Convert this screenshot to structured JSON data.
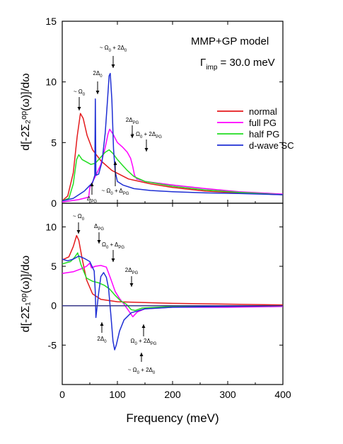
{
  "chart_data": [
    {
      "type": "line",
      "panel": "top",
      "ylabel": "d[-2Σ₂ᵒᵖ(ω)]/dω",
      "xlim": [
        0,
        400
      ],
      "ylim": [
        0,
        15
      ],
      "xticks": [
        0,
        100,
        200,
        300,
        400
      ],
      "yticks": [
        0,
        5,
        10,
        15
      ],
      "grid": false,
      "legend_placement": "center-right",
      "model_label": "MMP+GP model",
      "gamma_label": "Γ",
      "gamma_sub": "imp",
      "gamma_value": " = 30.0 meV",
      "series": [
        {
          "name": "normal",
          "color": "#e41a1c",
          "points": [
            [
              0,
              0.2
            ],
            [
              10,
              0.6
            ],
            [
              20,
              2.5
            ],
            [
              27,
              5.5
            ],
            [
              33,
              7.4
            ],
            [
              38,
              7.0
            ],
            [
              45,
              5.6
            ],
            [
              55,
              4.4
            ],
            [
              70,
              3.5
            ],
            [
              90,
              2.7
            ],
            [
              120,
              2.0
            ],
            [
              160,
              1.6
            ],
            [
              200,
              1.3
            ],
            [
              260,
              1.0
            ],
            [
              320,
              0.85
            ],
            [
              400,
              0.7
            ]
          ]
        },
        {
          "name": "full PG",
          "color": "#ff00ff",
          "points": [
            [
              0,
              0.1
            ],
            [
              30,
              0.3
            ],
            [
              48,
              0.5
            ],
            [
              50,
              1.3
            ],
            [
              62,
              2.4
            ],
            [
              70,
              3.2
            ],
            [
              78,
              4.6
            ],
            [
              83,
              5.7
            ],
            [
              86,
              6.1
            ],
            [
              92,
              5.7
            ],
            [
              100,
              5.0
            ],
            [
              110,
              4.6
            ],
            [
              118,
              4.2
            ],
            [
              124,
              3.7
            ],
            [
              128,
              3.0
            ],
            [
              131,
              2.3
            ],
            [
              135,
              2.0
            ],
            [
              150,
              1.8
            ],
            [
              200,
              1.5
            ],
            [
              260,
              1.2
            ],
            [
              320,
              0.95
            ],
            [
              400,
              0.75
            ]
          ]
        },
        {
          "name": "half PG",
          "color": "#22dd22",
          "points": [
            [
              0,
              0.2
            ],
            [
              12,
              0.4
            ],
            [
              20,
              1.6
            ],
            [
              26,
              3.6
            ],
            [
              30,
              4.0
            ],
            [
              36,
              3.6
            ],
            [
              44,
              3.4
            ],
            [
              52,
              3.2
            ],
            [
              60,
              3.3
            ],
            [
              70,
              3.8
            ],
            [
              78,
              4.2
            ],
            [
              85,
              4.4
            ],
            [
              92,
              4.1
            ],
            [
              100,
              3.6
            ],
            [
              108,
              3.2
            ],
            [
              118,
              2.7
            ],
            [
              130,
              2.2
            ],
            [
              150,
              1.8
            ],
            [
              200,
              1.4
            ],
            [
              260,
              1.1
            ],
            [
              320,
              0.9
            ],
            [
              400,
              0.7
            ]
          ]
        },
        {
          "name": "d-wave SC",
          "color": "#1f2fd4",
          "points": [
            [
              0,
              0.2
            ],
            [
              20,
              0.4
            ],
            [
              40,
              1.0
            ],
            [
              55,
              1.7
            ],
            [
              59,
              2.3
            ],
            [
              60,
              8.6
            ],
            [
              61,
              2.3
            ],
            [
              66,
              2.4
            ],
            [
              72,
              3.4
            ],
            [
              78,
              5.8
            ],
            [
              82,
              8.5
            ],
            [
              85,
              10.5
            ],
            [
              87,
              10.7
            ],
            [
              90,
              8.5
            ],
            [
              93,
              4.5
            ],
            [
              96,
              2.6
            ],
            [
              100,
              1.8
            ],
            [
              110,
              1.5
            ],
            [
              130,
              1.2
            ],
            [
              160,
              1.05
            ],
            [
              200,
              0.95
            ],
            [
              260,
              0.85
            ],
            [
              320,
              0.8
            ],
            [
              400,
              0.7
            ]
          ]
        }
      ],
      "annotations": [
        {
          "text": "~ Ω",
          "sub": "0"
        },
        {
          "text": "2Δ",
          "sub": "0"
        },
        {
          "text": "~ Ω",
          "sub": "0",
          "suffix": " + 2Δ",
          "sub2": "0"
        },
        {
          "text": "2Δ",
          "sub": "PG"
        },
        {
          "text": "~ Ω",
          "sub": "0",
          "suffix": " + 2Δ",
          "sub2": "PG"
        },
        {
          "text": "Δ",
          "sub": "PG"
        },
        {
          "text": "~ Ω",
          "sub": "0",
          "suffix": " + Δ",
          "sub2": "PG"
        }
      ]
    },
    {
      "type": "line",
      "panel": "bottom",
      "xlabel": "Frequency (meV)",
      "ylabel": "d[-2Σ₁ᵒᵖ(ω)]/dω",
      "xlim": [
        0,
        400
      ],
      "ylim": [
        -10,
        13
      ],
      "xticks": [
        0,
        100,
        200,
        300,
        400
      ],
      "yticks": [
        -5,
        0,
        5,
        10
      ],
      "grid": false,
      "series": [
        {
          "name": "normal",
          "color": "#e41a1c",
          "points": [
            [
              0,
              5.8
            ],
            [
              12,
              6.2
            ],
            [
              20,
              7.5
            ],
            [
              26,
              8.9
            ],
            [
              30,
              8.3
            ],
            [
              36,
              6.0
            ],
            [
              44,
              3.3
            ],
            [
              55,
              1.5
            ],
            [
              70,
              0.8
            ],
            [
              100,
              0.5
            ],
            [
              200,
              0.3
            ],
            [
              300,
              0.2
            ],
            [
              400,
              0.1
            ]
          ]
        },
        {
          "name": "full PG",
          "color": "#ff00ff",
          "points": [
            [
              0,
              4.1
            ],
            [
              20,
              4.3
            ],
            [
              35,
              4.7
            ],
            [
              44,
              5.0
            ],
            [
              50,
              5.4
            ],
            [
              53,
              4.8
            ],
            [
              60,
              5.0
            ],
            [
              70,
              5.1
            ],
            [
              80,
              4.9
            ],
            [
              88,
              3.4
            ],
            [
              96,
              1.8
            ],
            [
              104,
              0.9
            ],
            [
              112,
              0.2
            ],
            [
              120,
              -0.6
            ],
            [
              128,
              -1.4
            ],
            [
              136,
              -0.8
            ],
            [
              150,
              -0.4
            ],
            [
              200,
              -0.2
            ],
            [
              300,
              -0.2
            ],
            [
              400,
              -0.1
            ]
          ]
        },
        {
          "name": "half PG",
          "color": "#22dd22",
          "points": [
            [
              0,
              5.3
            ],
            [
              15,
              5.6
            ],
            [
              22,
              6.1
            ],
            [
              28,
              6.7
            ],
            [
              34,
              5.2
            ],
            [
              44,
              3.5
            ],
            [
              55,
              3.1
            ],
            [
              66,
              2.9
            ],
            [
              76,
              2.6
            ],
            [
              86,
              2.1
            ],
            [
              96,
              1.3
            ],
            [
              106,
              0.6
            ],
            [
              116,
              0.2
            ],
            [
              125,
              -0.5
            ],
            [
              132,
              -0.6
            ],
            [
              145,
              -0.3
            ],
            [
              200,
              -0.1
            ],
            [
              400,
              0
            ]
          ]
        },
        {
          "name": "d-wave SC",
          "color": "#1f2fd4",
          "points": [
            [
              0,
              5.9
            ],
            [
              10,
              5.7
            ],
            [
              20,
              5.9
            ],
            [
              30,
              6.3
            ],
            [
              40,
              6.0
            ],
            [
              50,
              5.6
            ],
            [
              58,
              4.4
            ],
            [
              60,
              1.6
            ],
            [
              61,
              -1.5
            ],
            [
              63,
              -0.3
            ],
            [
              66,
              1.6
            ],
            [
              70,
              3.7
            ],
            [
              75,
              4.2
            ],
            [
              80,
              3.6
            ],
            [
              84,
              2.2
            ],
            [
              88,
              -1.0
            ],
            [
              92,
              -4.5
            ],
            [
              95,
              -5.6
            ],
            [
              98,
              -5.0
            ],
            [
              104,
              -3.2
            ],
            [
              112,
              -1.8
            ],
            [
              125,
              -0.9
            ],
            [
              150,
              -0.4
            ],
            [
              200,
              -0.2
            ],
            [
              300,
              -0.1
            ],
            [
              400,
              0
            ]
          ]
        },
        {
          "name": "zero line",
          "color": "#3a3a8a",
          "points": [
            [
              0,
              0
            ],
            [
              400,
              0
            ]
          ]
        }
      ],
      "annotations": [
        {
          "text": "~ Ω",
          "sub": "0"
        },
        {
          "text": "Δ",
          "sub": "PG"
        },
        {
          "text": "Ω",
          "sub": "0",
          "suffix": " + Δ",
          "sub2": "PG"
        },
        {
          "text": "2Δ",
          "sub": "PG"
        },
        {
          "text": "2Δ",
          "sub": "0"
        },
        {
          "text": "Ω",
          "sub": "0",
          "suffix": " + 2Δ",
          "sub2": "PG"
        },
        {
          "text": "~ Ω",
          "sub": "0",
          "suffix": " + 2Δ",
          "sub2": "0"
        }
      ]
    }
  ]
}
